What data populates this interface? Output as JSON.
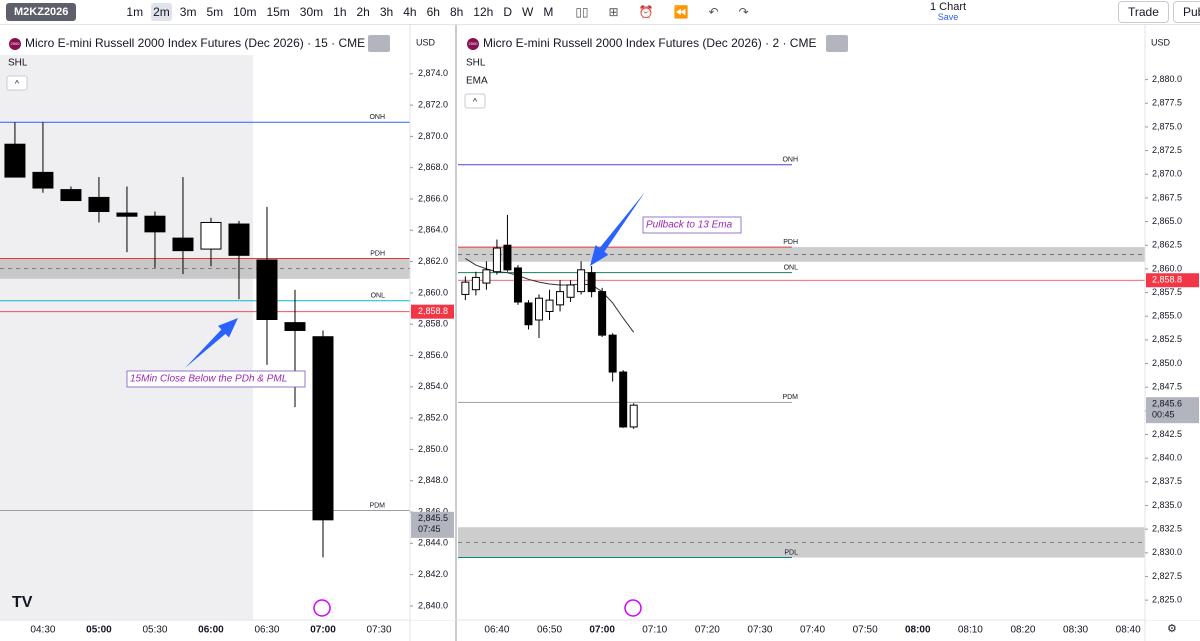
{
  "toolbar": {
    "symbol": "M2KZ2026",
    "timeframes": [
      "1m",
      "2m",
      "3m",
      "5m",
      "10m",
      "15m",
      "30m",
      "1h",
      "2h",
      "3h",
      "4h",
      "6h",
      "8h",
      "12h",
      "D",
      "W",
      "M"
    ],
    "layout": "1 Chart",
    "save": "Save",
    "trade": "Trade",
    "publish": "Pub"
  },
  "chart_data": [
    {
      "type": "candlestick",
      "title": "Micro E-mini Russell 2000 Index Futures (Dec 2026) · 15 · CME",
      "logo": "2000",
      "indicators": [
        "SHL"
      ],
      "currency": "USD",
      "x": [
        255,
        270,
        285,
        300,
        315,
        330,
        345,
        360,
        375,
        390,
        405,
        420
      ],
      "open": [
        2869.5,
        2867.7,
        2866.6,
        2866.1,
        2865.1,
        2864.9,
        2863.5,
        2862.8,
        2864.4,
        2862.1,
        2858.1,
        2857.2
      ],
      "high": [
        2870.9,
        2870.9,
        2866.8,
        2867.4,
        2866.8,
        2865.2,
        2867.4,
        2864.8,
        2864.6,
        2865.5,
        2860.2,
        2857.6
      ],
      "low": [
        2867.4,
        2866.4,
        2865.9,
        2864.5,
        2862.6,
        2861.6,
        2861.2,
        2861.7,
        2859.6,
        2855.4,
        2852.7,
        2843.1
      ],
      "close": [
        2867.4,
        2866.7,
        2865.9,
        2865.2,
        2864.9,
        2863.9,
        2862.7,
        2864.5,
        2862.4,
        2858.3,
        2857.6,
        2845.5
      ],
      "up_color": "#ffffff",
      "down_color": "#000000",
      "xlim": [
        247,
        466.6
      ],
      "xticks": [
        {
          "value": 270,
          "label": "04:30"
        },
        {
          "value": 300,
          "label": "05:00"
        },
        {
          "value": 330,
          "label": "05:30"
        },
        {
          "value": 360,
          "label": "06:00"
        },
        {
          "value": 390,
          "label": "06:30"
        },
        {
          "value": 420,
          "label": "07:00"
        },
        {
          "value": 450,
          "label": "07:30"
        }
      ],
      "ylim": [
        2839.1,
        2875.2
      ],
      "yticks": [
        {
          "value": 2874,
          "label": "2,874.0"
        },
        {
          "value": 2872,
          "label": "2,872.0"
        },
        {
          "value": 2870,
          "label": "2,870.0"
        },
        {
          "value": 2868,
          "label": "2,868.0"
        },
        {
          "value": 2866,
          "label": "2,866.0"
        },
        {
          "value": 2864,
          "label": "2,864.0"
        },
        {
          "value": 2862,
          "label": "2,862.0"
        },
        {
          "value": 2860,
          "label": "2,860.0"
        },
        {
          "value": 2858,
          "label": "2,858.0"
        },
        {
          "value": 2856,
          "label": "2,856.0"
        },
        {
          "value": 2854,
          "label": "2,854.0"
        },
        {
          "value": 2852,
          "label": "2,852.0"
        },
        {
          "value": 2850,
          "label": "2,850.0"
        },
        {
          "value": 2848,
          "label": "2,848.0"
        },
        {
          "value": 2846,
          "label": "2,846.0"
        },
        {
          "value": 2844,
          "label": "2,844.0"
        },
        {
          "value": 2842,
          "label": "2,842.0"
        },
        {
          "value": 2840,
          "label": "2,840.0"
        }
      ],
      "levels": [
        {
          "name": "ONH",
          "value": 2870.9,
          "color": "#2962ff"
        },
        {
          "name": "PDH",
          "value": 2862.2,
          "color": "#e53935"
        },
        {
          "name": "ONL",
          "value": 2859.5,
          "color": "#00bcd4"
        },
        {
          "name": "PDM",
          "value": 2846.1,
          "color": "#9e9e9e"
        }
      ],
      "zones": [
        {
          "from": 2860.9,
          "to": 2862.2
        }
      ],
      "last_price": {
        "value": 2858.8,
        "label": "2,858.8"
      },
      "close_badge": {
        "value": 2845.5,
        "label": "2,845.5",
        "countdown": "07:45"
      },
      "annotation": "15Min Close Below the PDh & PML"
    },
    {
      "type": "candlestick",
      "title": "Micro E-mini Russell 2000 Index Futures (Dec 2026) · 2 · CME",
      "logo": "2000",
      "indicators": [
        "SHL",
        "EMA"
      ],
      "currency": "USD",
      "x": [
        394,
        396,
        398,
        400,
        402,
        404,
        406,
        408,
        410,
        412,
        414,
        416,
        418,
        420,
        422,
        424,
        426
      ],
      "open": [
        2857.3,
        2857.8,
        2858.5,
        2859.7,
        2862.5,
        2860.1,
        2856.4,
        2854.6,
        2855.5,
        2856.2,
        2857.0,
        2857.6,
        2859.6,
        2857.6,
        2853.0,
        2849.1,
        2843.3
      ],
      "high": [
        2859.2,
        2859.7,
        2860.8,
        2863.1,
        2865.7,
        2860.4,
        2856.7,
        2857.3,
        2857.8,
        2858.8,
        2858.8,
        2860.8,
        2860.3,
        2858.0,
        2853.2,
        2849.3,
        2845.8
      ],
      "low": [
        2856.7,
        2857.2,
        2857.8,
        2859.4,
        2859.7,
        2856.2,
        2853.6,
        2852.7,
        2854.6,
        2855.5,
        2856.5,
        2857.3,
        2857.0,
        2852.8,
        2848.1,
        2843.2,
        2843.1
      ],
      "close": [
        2858.6,
        2859.1,
        2859.9,
        2862.2,
        2859.9,
        2856.5,
        2854.1,
        2856.9,
        2856.7,
        2857.6,
        2858.3,
        2859.9,
        2857.6,
        2853.0,
        2849.1,
        2843.3,
        2845.6
      ],
      "up_color": "#ffffff",
      "down_color": "#000000",
      "ema": {
        "color": "#333333",
        "x": [
          394,
          396,
          398,
          400,
          402,
          404,
          406,
          408,
          410,
          412,
          414,
          416,
          418,
          420,
          422,
          424,
          426
        ],
        "values": [
          2861.1,
          2860.4,
          2860.0,
          2859.7,
          2859.6,
          2859.3,
          2858.9,
          2858.6,
          2858.4,
          2858.3,
          2858.3,
          2858.4,
          2858.3,
          2857.6,
          2856.4,
          2854.8,
          2853.3
        ]
      },
      "xlim": [
        392.6,
        523.2
      ],
      "xticks": [
        {
          "value": 400,
          "label": "06:40"
        },
        {
          "value": 410,
          "label": "06:50"
        },
        {
          "value": 420,
          "label": "07:00"
        },
        {
          "value": 430,
          "label": "07:10"
        },
        {
          "value": 440,
          "label": "07:20"
        },
        {
          "value": 450,
          "label": "07:30"
        },
        {
          "value": 460,
          "label": "07:40"
        },
        {
          "value": 470,
          "label": "07:50"
        },
        {
          "value": 480,
          "label": "08:00"
        },
        {
          "value": 490,
          "label": "08:10"
        },
        {
          "value": 500,
          "label": "08:20"
        },
        {
          "value": 510,
          "label": "08:30"
        },
        {
          "value": 520,
          "label": "08:40"
        }
      ],
      "ylim": [
        2822.9,
        2882.6
      ],
      "yticks": [
        {
          "value": 2880,
          "label": "2,880.0"
        },
        {
          "value": 2877.5,
          "label": "2,877.5"
        },
        {
          "value": 2875,
          "label": "2,875.0"
        },
        {
          "value": 2872.5,
          "label": "2,872.5"
        },
        {
          "value": 2870,
          "label": "2,870.0"
        },
        {
          "value": 2867.5,
          "label": "2,867.5"
        },
        {
          "value": 2865,
          "label": "2,865.0"
        },
        {
          "value": 2862.5,
          "label": "2,862.5"
        },
        {
          "value": 2860,
          "label": "2,860.0"
        },
        {
          "value": 2857.5,
          "label": "2,857.5"
        },
        {
          "value": 2855,
          "label": "2,855.0"
        },
        {
          "value": 2852.5,
          "label": "2,852.5"
        },
        {
          "value": 2850,
          "label": "2,850.0"
        },
        {
          "value": 2847.5,
          "label": "2,847.5"
        },
        {
          "value": 2845,
          "label": "2,845.0"
        },
        {
          "value": 2842.5,
          "label": "2,842.5"
        },
        {
          "value": 2840,
          "label": "2,840.0"
        },
        {
          "value": 2837.5,
          "label": "2,837.5"
        },
        {
          "value": 2835,
          "label": "2,835.0"
        },
        {
          "value": 2832.5,
          "label": "2,832.5"
        },
        {
          "value": 2830,
          "label": "2,830.0"
        },
        {
          "value": 2827.5,
          "label": "2,827.5"
        },
        {
          "value": 2825,
          "label": "2,825.0"
        }
      ],
      "levels": [
        {
          "name": "ONH",
          "value": 2871.0,
          "color": "#5b3fd1"
        },
        {
          "name": "PDH",
          "value": 2862.3,
          "color": "#e53935"
        },
        {
          "name": "ONL",
          "value": 2859.6,
          "color": "#1b7f5a"
        },
        {
          "name": "PDM",
          "value": 2845.9,
          "color": "#9e9e9e"
        },
        {
          "name": "PDL",
          "value": 2829.5,
          "color": "#00897b"
        }
      ],
      "zones": [
        {
          "from": 2860.75,
          "to": 2862.3
        },
        {
          "from": 2829.5,
          "to": 2832.7
        }
      ],
      "last_price": {
        "value": 2858.8,
        "label": "2,858.8"
      },
      "close_badge": {
        "value": 2845.6,
        "label": "2,845.6",
        "countdown": "00:45"
      },
      "annotation": "Pullback to 13 Ema"
    }
  ]
}
